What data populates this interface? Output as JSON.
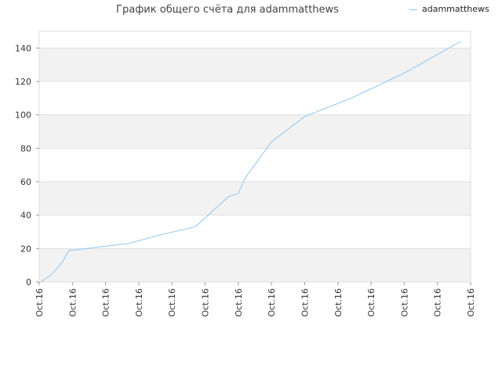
{
  "chart_data": {
    "type": "line",
    "title": "График общего счёта для adammatthews",
    "xlabel": "",
    "ylabel": "",
    "ylim": [
      0,
      150
    ],
    "yticks": [
      0,
      20,
      40,
      60,
      80,
      100,
      120,
      140
    ],
    "xtick_labels": [
      "Oct.16",
      "Oct.16",
      "Oct.16",
      "Oct.16",
      "Oct.16",
      "Oct.16",
      "Oct.16",
      "Oct.16",
      "Oct.16",
      "Oct.16",
      "Oct.16",
      "Oct.16",
      "Oct.16",
      "Oct.16"
    ],
    "grid": true,
    "legend_position": "top-right",
    "series": [
      {
        "name": "adammatthews",
        "color": "#8ec6f3",
        "x": [
          0.05,
          0.4,
          0.7,
          0.9,
          1.0,
          1.8,
          2.7,
          3.6,
          4.7,
          5.7,
          6.0,
          6.2,
          7.0,
          8.0,
          9.4,
          11.0,
          12.7
        ],
        "values": [
          0,
          5,
          12,
          19,
          19,
          21,
          23,
          28,
          33,
          51,
          53,
          62,
          84,
          99,
          110,
          125,
          144
        ]
      }
    ]
  }
}
